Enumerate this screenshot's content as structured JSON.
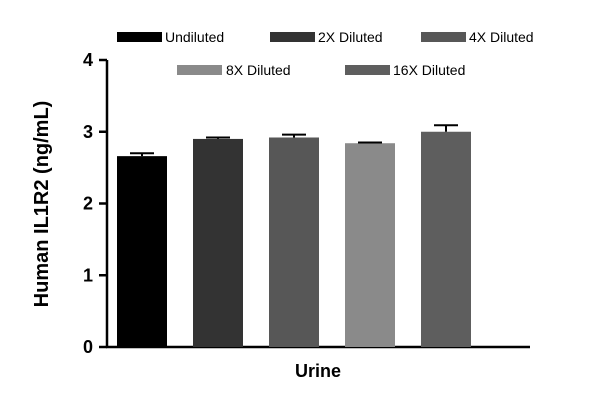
{
  "chart_data": {
    "type": "bar",
    "title": "",
    "ylabel": "Human IL1R2 (ng/mL)",
    "xlabel": "Urine",
    "ylim": [
      0,
      4
    ],
    "yticks": [
      "0",
      "1",
      "2",
      "3",
      "4"
    ],
    "grid": false,
    "legend_position": "top",
    "series": [
      {
        "name": "Undiluted",
        "value": 2.66,
        "error": 0.04,
        "color": "#000000"
      },
      {
        "name": "2X Diluted",
        "value": 2.9,
        "error": 0.02,
        "color": "#333333"
      },
      {
        "name": "4X Diluted",
        "value": 2.92,
        "error": 0.04,
        "color": "#575757"
      },
      {
        "name": "8X Diluted",
        "value": 2.84,
        "error": 0.01,
        "color": "#8a8a8a"
      },
      {
        "name": "16X Diluted",
        "value": 3.0,
        "error": 0.09,
        "color": "#5e5e5e"
      }
    ]
  }
}
